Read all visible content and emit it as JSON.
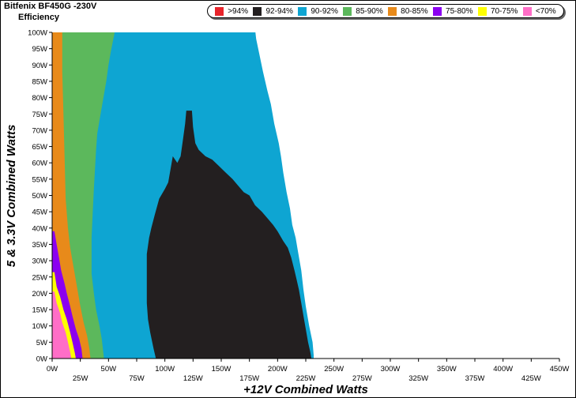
{
  "header": {
    "title": "Bitfenix BF450G -230V",
    "subtitle": "Efficiency"
  },
  "chart_data": {
    "type": "heatmap",
    "title": "Bitfenix BF450G -230V",
    "subtitle": "Efficiency",
    "xlabel": "+12V Combined Watts",
    "ylabel": "5 & 3.3V Combined Watts",
    "xlim": [
      0,
      450
    ],
    "ylim": [
      0,
      100
    ],
    "x_ticks": [
      "0W",
      "25W",
      "50W",
      "75W",
      "100W",
      "125W",
      "150W",
      "175W",
      "200W",
      "225W",
      "250W",
      "275W",
      "300W",
      "325W",
      "350W",
      "375W",
      "400W",
      "425W",
      "450W"
    ],
    "y_ticks": [
      "0W",
      "5W",
      "10W",
      "15W",
      "20W",
      "25W",
      "30W",
      "35W",
      "40W",
      "45W",
      "50W",
      "55W",
      "60W",
      "65W",
      "70W",
      "75W",
      "80W",
      "85W",
      "90W",
      "95W",
      "100W"
    ],
    "legend": [
      {
        "label": ">94%",
        "color": "#e8242b"
      },
      {
        "label": "92-94%",
        "color": "#231f20"
      },
      {
        "label": "90-92%",
        "color": "#0ea5d2"
      },
      {
        "label": "85-90%",
        "color": "#5cb85c"
      },
      {
        "label": "80-85%",
        "color": "#e88a1a"
      },
      {
        "label": "75-80%",
        "color": "#8b00f0"
      },
      {
        "label": "70-75%",
        "color": "#ffff00"
      },
      {
        "label": "<70%",
        "color": "#ff6ec7"
      }
    ],
    "regions": [
      {
        "band": "<70%",
        "boundary": [
          [
            0,
            0
          ],
          [
            0,
            20.5
          ],
          [
            2,
            20.5
          ],
          [
            4,
            17
          ],
          [
            7,
            14
          ],
          [
            9,
            11
          ],
          [
            12,
            8
          ],
          [
            14,
            5
          ],
          [
            16,
            2
          ],
          [
            17,
            0
          ]
        ]
      },
      {
        "band": "70-75%",
        "boundary": [
          [
            0,
            0
          ],
          [
            0,
            26.5
          ],
          [
            2,
            26.5
          ],
          [
            4,
            22
          ],
          [
            7,
            19
          ],
          [
            10,
            15
          ],
          [
            13,
            12
          ],
          [
            16,
            8
          ],
          [
            18,
            5
          ],
          [
            20,
            2
          ],
          [
            21,
            0
          ]
        ]
      },
      {
        "band": "75-80%",
        "boundary": [
          [
            0,
            0
          ],
          [
            0,
            39
          ],
          [
            2,
            39
          ],
          [
            4,
            35
          ],
          [
            6,
            31
          ],
          [
            8,
            27
          ],
          [
            11,
            23
          ],
          [
            13,
            20
          ],
          [
            16,
            16
          ],
          [
            18,
            13
          ],
          [
            21,
            9
          ],
          [
            24,
            6
          ],
          [
            26,
            3
          ],
          [
            27,
            0
          ]
        ]
      },
      {
        "band": "80-85%",
        "boundary": [
          [
            0,
            0
          ],
          [
            0,
            101
          ],
          [
            9,
            101
          ],
          [
            9,
            88
          ],
          [
            10,
            75
          ],
          [
            11,
            62
          ],
          [
            12,
            49
          ],
          [
            14,
            40
          ],
          [
            16,
            34
          ],
          [
            19,
            28
          ],
          [
            22,
            22
          ],
          [
            25,
            16
          ],
          [
            28,
            11
          ],
          [
            31,
            7
          ],
          [
            33,
            3
          ],
          [
            34,
            0
          ]
        ]
      },
      {
        "band": "85-90%",
        "boundary": [
          [
            0,
            0
          ],
          [
            0,
            101
          ],
          [
            56,
            101
          ],
          [
            52,
            94
          ],
          [
            50,
            90
          ],
          [
            48,
            85
          ],
          [
            45,
            79
          ],
          [
            42,
            73
          ],
          [
            40,
            69
          ],
          [
            39,
            64
          ],
          [
            38,
            58
          ],
          [
            37,
            52
          ],
          [
            36,
            45
          ],
          [
            35,
            37
          ],
          [
            35,
            26
          ],
          [
            37,
            20
          ],
          [
            39,
            15
          ],
          [
            42,
            10
          ],
          [
            44,
            6
          ],
          [
            45,
            3
          ],
          [
            46,
            0
          ]
        ]
      },
      {
        "band": "90-92%",
        "boundary": [
          [
            0,
            0
          ],
          [
            0,
            101
          ],
          [
            180,
            101
          ],
          [
            181,
            98
          ],
          [
            184,
            93
          ],
          [
            187,
            88
          ],
          [
            191,
            82
          ],
          [
            194,
            78
          ],
          [
            197,
            72
          ],
          [
            201,
            66
          ],
          [
            203,
            62
          ],
          [
            205,
            57
          ],
          [
            208,
            51
          ],
          [
            211,
            46
          ],
          [
            213,
            41
          ],
          [
            216,
            37
          ],
          [
            218,
            33
          ],
          [
            221,
            27
          ],
          [
            223,
            21
          ],
          [
            225,
            16
          ],
          [
            228,
            10
          ],
          [
            231,
            5
          ],
          [
            232,
            1
          ],
          [
            232,
            0
          ]
        ]
      },
      {
        "band": "92-94%",
        "boundary": [
          [
            92,
            0
          ],
          [
            90,
            3
          ],
          [
            87,
            8
          ],
          [
            85,
            12
          ],
          [
            84,
            17
          ],
          [
            84,
            22
          ],
          [
            84,
            27
          ],
          [
            84,
            32
          ],
          [
            86,
            37
          ],
          [
            88,
            40
          ],
          [
            91,
            44
          ],
          [
            95,
            49
          ],
          [
            100,
            52
          ],
          [
            103,
            54
          ],
          [
            105,
            58
          ],
          [
            107,
            62
          ],
          [
            111,
            60
          ],
          [
            114,
            62
          ],
          [
            116,
            67
          ],
          [
            118,
            72
          ],
          [
            119,
            76
          ],
          [
            124,
            76
          ],
          [
            125,
            71
          ],
          [
            127,
            66
          ],
          [
            130,
            64
          ],
          [
            136,
            62
          ],
          [
            142,
            61
          ],
          [
            148,
            59
          ],
          [
            154,
            57
          ],
          [
            160,
            55
          ],
          [
            165,
            53
          ],
          [
            170,
            51
          ],
          [
            175,
            50
          ],
          [
            180,
            47
          ],
          [
            186,
            45
          ],
          [
            191,
            43
          ],
          [
            196,
            41
          ],
          [
            200,
            39
          ],
          [
            205,
            36
          ],
          [
            209,
            34
          ],
          [
            212,
            31
          ],
          [
            215,
            27
          ],
          [
            217,
            24
          ],
          [
            219,
            21
          ],
          [
            221,
            17
          ],
          [
            223,
            13
          ],
          [
            225,
            9
          ],
          [
            227,
            5
          ],
          [
            229,
            2
          ],
          [
            230,
            0
          ]
        ]
      }
    ]
  }
}
